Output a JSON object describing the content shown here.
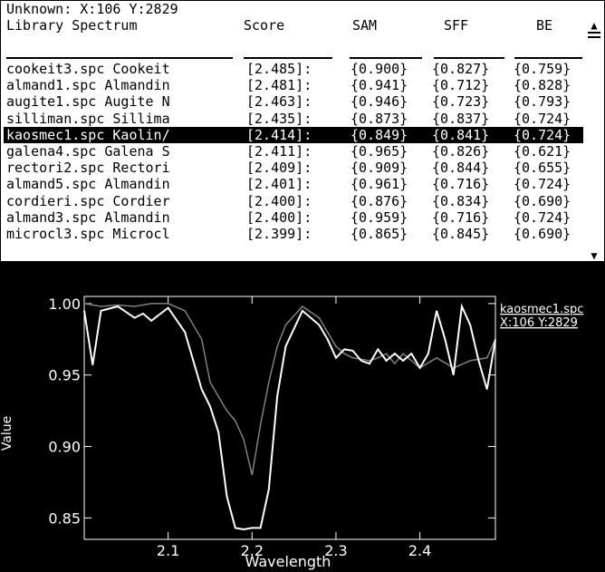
{
  "status": {
    "label": "Unknown:",
    "coords": "X:106 Y:2829"
  },
  "table": {
    "columns": [
      "Library Spectrum",
      "Score",
      "SAM",
      "SFF",
      "BE"
    ],
    "rows": [
      {
        "spectrum": "cookeit3.spc Cookeit",
        "score": "[2.485]:",
        "sam": "{0.900}",
        "sff": "{0.827}",
        "be": "{0.759}"
      },
      {
        "spectrum": "almand1.spc Almandin",
        "score": "[2.481]:",
        "sam": "{0.941}",
        "sff": "{0.712}",
        "be": "{0.828}"
      },
      {
        "spectrum": "augite1.spc Augite N",
        "score": "[2.463]:",
        "sam": "{0.946}",
        "sff": "{0.723}",
        "be": "{0.793}"
      },
      {
        "spectrum": "silliman.spc Sillima",
        "score": "[2.435]:",
        "sam": "{0.873}",
        "sff": "{0.837}",
        "be": "{0.724}"
      },
      {
        "spectrum": "kaosmec1.spc Kaolin/",
        "score": "[2.414]:",
        "sam": "{0.849}",
        "sff": "{0.841}",
        "be": "{0.724}",
        "selected": true
      },
      {
        "spectrum": "galena4.spc Galena S",
        "score": "[2.411]:",
        "sam": "{0.965}",
        "sff": "{0.826}",
        "be": "{0.621}"
      },
      {
        "spectrum": "rectori2.spc Rectori",
        "score": "[2.409]:",
        "sam": "{0.909}",
        "sff": "{0.844}",
        "be": "{0.655}"
      },
      {
        "spectrum": "almand5.spc Almandin",
        "score": "[2.401]:",
        "sam": "{0.961}",
        "sff": "{0.716}",
        "be": "{0.724}"
      },
      {
        "spectrum": "cordieri.spc Cordier",
        "score": "[2.400]:",
        "sam": "{0.876}",
        "sff": "{0.834}",
        "be": "{0.690}"
      },
      {
        "spectrum": "almand3.spc Almandin",
        "score": "[2.400]:",
        "sam": "{0.959}",
        "sff": "{0.716}",
        "be": "{0.724}"
      },
      {
        "spectrum": "microcl3.spc Microcl",
        "score": "[2.399]:",
        "sam": "{0.865}",
        "sff": "{0.845}",
        "be": "{0.690}"
      }
    ]
  },
  "scroll": {
    "up_icon": "▲",
    "down_icon": "▼"
  },
  "chart_data": {
    "type": "line",
    "xlabel": "Wavelength",
    "ylabel": "Value",
    "xlim": [
      2.0,
      2.49
    ],
    "ylim": [
      0.835,
      1.005
    ],
    "xticks": [
      "2.1",
      "2.2",
      "2.3",
      "2.4"
    ],
    "yticks": [
      "1.00",
      "0.95",
      "0.90",
      "0.85"
    ],
    "series": [
      {
        "name": "kaosmec1.spc",
        "x": [
          2.0,
          2.02,
          2.04,
          2.06,
          2.08,
          2.1,
          2.12,
          2.14,
          2.15,
          2.16,
          2.17,
          2.18,
          2.19,
          2.2,
          2.21,
          2.22,
          2.23,
          2.24,
          2.26,
          2.28,
          2.3,
          2.31,
          2.32,
          2.34,
          2.35,
          2.36,
          2.37,
          2.38,
          2.4,
          2.42,
          2.44,
          2.46,
          2.48,
          2.49
        ],
        "y": [
          1.0,
          0.998,
          0.999,
          0.998,
          1.0,
          1.0,
          0.995,
          0.975,
          0.945,
          0.935,
          0.925,
          0.918,
          0.905,
          0.88,
          0.915,
          0.945,
          0.97,
          0.985,
          0.998,
          0.99,
          0.97,
          0.965,
          0.962,
          0.96,
          0.962,
          0.965,
          0.958,
          0.965,
          0.955,
          0.962,
          0.955,
          0.96,
          0.962,
          0.975
        ]
      },
      {
        "name": "X:106 Y:2829",
        "x": [
          2.0,
          2.01,
          2.02,
          2.04,
          2.06,
          2.07,
          2.08,
          2.1,
          2.12,
          2.13,
          2.14,
          2.15,
          2.16,
          2.17,
          2.18,
          2.19,
          2.2,
          2.21,
          2.22,
          2.23,
          2.24,
          2.26,
          2.28,
          2.29,
          2.3,
          2.31,
          2.32,
          2.33,
          2.34,
          2.35,
          2.36,
          2.37,
          2.38,
          2.39,
          2.4,
          2.41,
          2.42,
          2.43,
          2.44,
          2.45,
          2.46,
          2.47,
          2.48,
          2.49
        ],
        "y": [
          0.995,
          0.957,
          0.995,
          0.998,
          0.99,
          0.993,
          0.988,
          0.997,
          0.98,
          0.96,
          0.94,
          0.928,
          0.91,
          0.865,
          0.843,
          0.842,
          0.843,
          0.843,
          0.87,
          0.935,
          0.97,
          0.995,
          0.985,
          0.975,
          0.962,
          0.968,
          0.967,
          0.96,
          0.958,
          0.968,
          0.96,
          0.965,
          0.96,
          0.965,
          0.955,
          0.965,
          0.995,
          0.975,
          0.95,
          0.998,
          0.985,
          0.96,
          0.94,
          0.975
        ]
      }
    ]
  },
  "colors": {
    "background": "#000000",
    "series_1": "#808080",
    "series_2": "#ffffff"
  }
}
